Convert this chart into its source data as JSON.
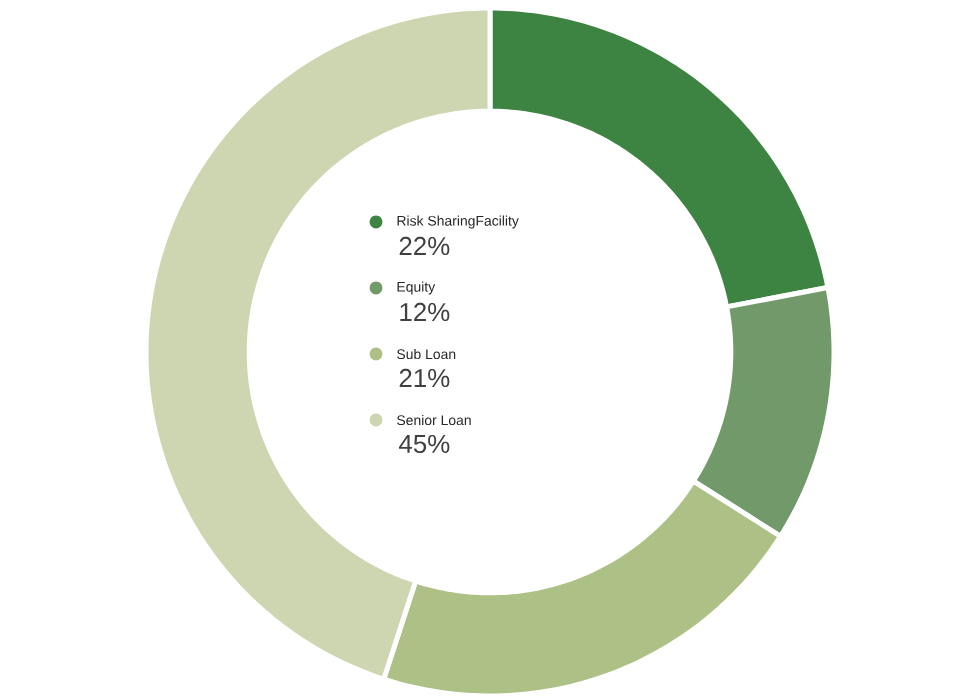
{
  "chart_data": {
    "type": "donut",
    "categories": [
      "Risk SharingFacility",
      "Equity",
      "Sub Loan",
      "Senior Loan"
    ],
    "values": [
      22,
      12,
      21,
      45
    ],
    "value_labels": [
      "22%",
      "12%",
      "21%",
      "45%"
    ],
    "colors": [
      "#3d8443",
      "#72996a",
      "#adc187",
      "#cdd6b0"
    ],
    "legend": "center"
  }
}
